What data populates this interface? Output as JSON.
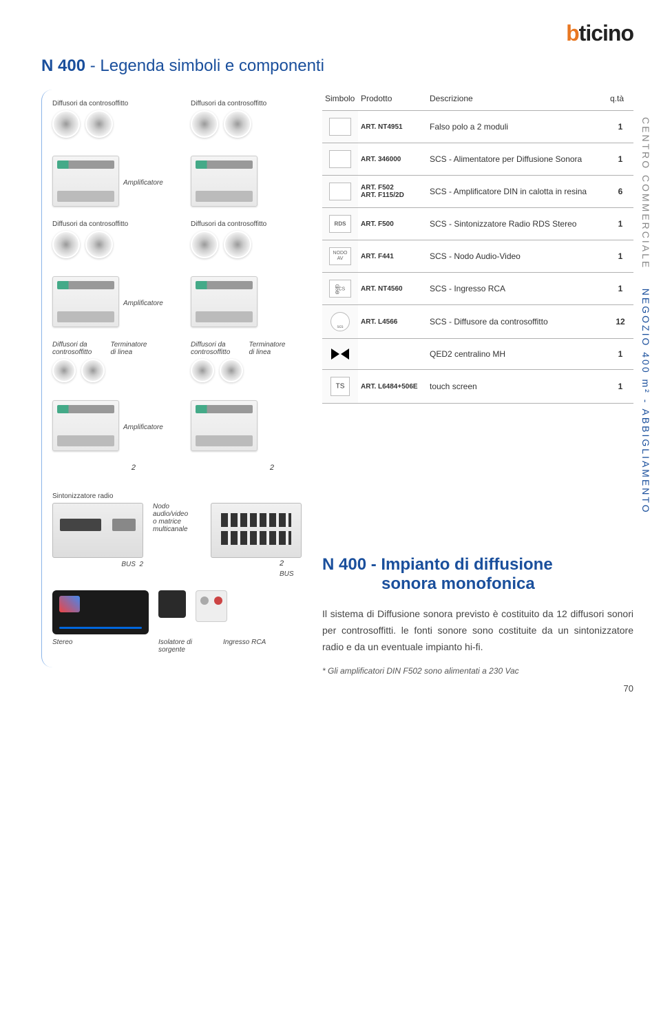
{
  "logo": {
    "b": "b",
    "rest": "ticino"
  },
  "page_title": {
    "pre": "N 400",
    "sep": " - ",
    "text": "Legenda simboli e componenti"
  },
  "diagram": {
    "diffusori": "Diffusori da controsoffitto",
    "amplificatore": "Amplificatore",
    "diffusori_short": "Diffusori da\ncontrosoffitto",
    "terminatore": "Terminatore\ndi linea",
    "two": "2",
    "sintonizzatore": "Sintonizzatore radio",
    "nodo": "Nodo\naudio/video\no matrice\nmulticanale",
    "bus": "BUS",
    "stereo": "Stereo",
    "isolatore": "Isolatore di\nsorgente",
    "ingresso": "Ingresso RCA"
  },
  "table": {
    "headers": {
      "simbolo": "Simbolo",
      "prodotto": "Prodotto",
      "descrizione": "Descrizione",
      "qta": "q.tà"
    },
    "rows": [
      {
        "prod": "ART. NT4951",
        "desc": "Falso polo a 2 moduli",
        "qty": "1",
        "sym": ""
      },
      {
        "prod": "ART. 346000",
        "desc": "SCS - Alimentatore per Diffusione Sonora",
        "qty": "1",
        "sym": ""
      },
      {
        "prod": "ART. F502\nART. F115/2D",
        "desc": "SCS - Amplificatore DIN in calotta in resina",
        "qty": "6",
        "sym": ""
      },
      {
        "prod": "ART. F500",
        "desc": "SCS - Sintonizzatore Radio RDS Stereo",
        "qty": "1",
        "sym": "rds"
      },
      {
        "prod": "ART. F441",
        "desc": "SCS - Nodo Audio-Video",
        "qty": "1",
        "sym": "nodo"
      },
      {
        "prod": "ART. NT4560",
        "desc": "SCS - Ingresso RCA",
        "qty": "1",
        "sym": "scs"
      },
      {
        "prod": "ART. L4566",
        "desc": "SCS - Diffusore da controsoffitto",
        "qty": "12",
        "sym": "circ"
      },
      {
        "prod": "",
        "desc": "QED2 centralino MH",
        "qty": "1",
        "sym": "bowtie"
      },
      {
        "prod": "ART. L6484+506E",
        "desc": "touch screen",
        "qty": "1",
        "sym": "ts"
      }
    ]
  },
  "side": {
    "gray": "CENTRO COMMERCIALE",
    "blue": "NEGOZIO 400 m² - ABBIGLIAMENTO"
  },
  "section2": {
    "title_pre": "N 400",
    "title_sep": " - ",
    "title_line1": "Impianto di diffusione",
    "title_line2": "sonora monofonica",
    "body": "Il sistema di Diffusione sonora previsto è costituito da 12 diffusori sonori per controsoffitti. le fonti sonore sono costituite da un sintonizzatore radio e da un eventuale impianto hi-fi.",
    "footnote": "* Gli amplificatori DIN F502 sono alimentati a 230 Vac"
  },
  "page_number": "70",
  "colors": {
    "brand_blue": "#1a4f9c",
    "brand_orange": "#e87722",
    "text": "#333333",
    "border": "#b0b0b0"
  }
}
